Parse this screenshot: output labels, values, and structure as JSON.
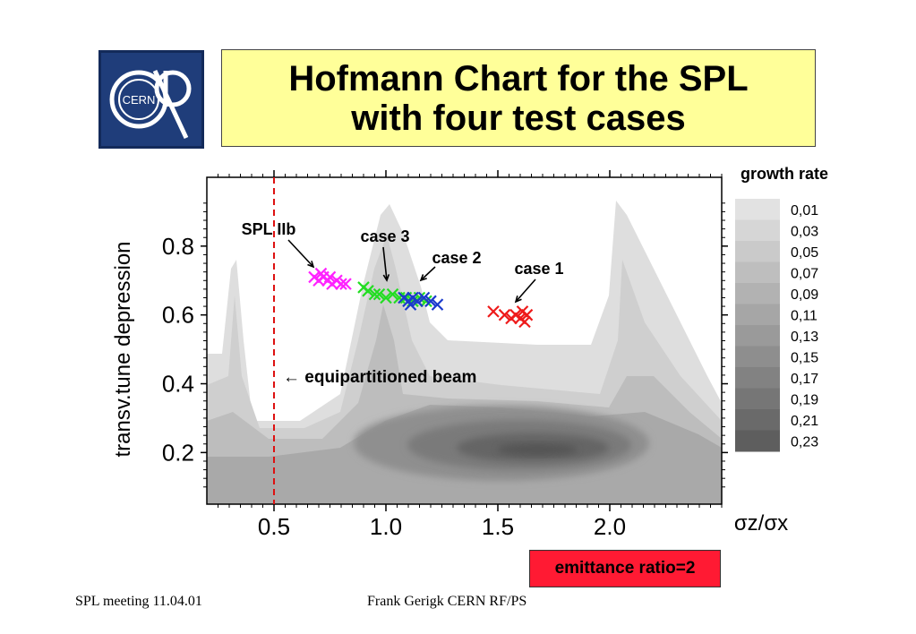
{
  "title": {
    "line1": "Hofmann Chart for the SPL",
    "line2": "with four test cases"
  },
  "logo": {
    "text": "CERN",
    "icon": "cern-logo"
  },
  "footer": {
    "left": "SPL meeting 11.04.01",
    "center": "Frank Gerigk CERN RF/PS"
  },
  "badge": {
    "text": "emittance ratio=2",
    "color": "#ff1a33"
  },
  "chart_data": {
    "type": "scatter",
    "title": "",
    "xlabel": "σz/σx",
    "ylabel": "transv.tune depression",
    "xlim": [
      0.2,
      2.5
    ],
    "ylim": [
      0.05,
      1.0
    ],
    "x_ticks": [
      "0.5",
      "1.0",
      "1.5",
      "2.0"
    ],
    "x_tick_values": [
      0.5,
      1.0,
      1.5,
      2.0
    ],
    "y_ticks": [
      "0.2",
      "0.4",
      "0.6",
      "0.8"
    ],
    "y_tick_values": [
      0.2,
      0.4,
      0.6,
      0.8
    ],
    "grid": false,
    "background": "contour plot of growth rate",
    "colorbar": {
      "title": "growth rate",
      "labels": [
        "0,01",
        "0,03",
        "0,05",
        "0,07",
        "0,09",
        "0,11",
        "0,13",
        "0,15",
        "0,17",
        "0,19",
        "0,21",
        "0,23"
      ],
      "colors": [
        "#e2e2e2",
        "#d6d6d6",
        "#cacaca",
        "#bebebe",
        "#b2b2b2",
        "#a6a6a6",
        "#9a9a9a",
        "#8e8e8e",
        "#828282",
        "#767676",
        "#6a6a6a",
        "#5e5e5e"
      ]
    },
    "series": [
      {
        "name": "SPL IIb",
        "color": "#ff22ff",
        "points": [
          [
            0.68,
            0.71
          ],
          [
            0.7,
            0.7
          ],
          [
            0.72,
            0.71
          ],
          [
            0.74,
            0.7
          ],
          [
            0.76,
            0.69
          ],
          [
            0.78,
            0.7
          ],
          [
            0.8,
            0.69
          ],
          [
            0.82,
            0.69
          ],
          [
            0.71,
            0.72
          ],
          [
            0.75,
            0.71
          ]
        ]
      },
      {
        "name": "case 3",
        "color": "#22dd22",
        "points": [
          [
            0.9,
            0.68
          ],
          [
            0.92,
            0.67
          ],
          [
            0.95,
            0.66
          ],
          [
            0.97,
            0.66
          ],
          [
            1.0,
            0.65
          ],
          [
            1.03,
            0.66
          ],
          [
            1.06,
            0.65
          ],
          [
            1.09,
            0.65
          ],
          [
            1.12,
            0.64
          ],
          [
            1.15,
            0.65
          ],
          [
            1.18,
            0.64
          ]
        ]
      },
      {
        "name": "case 2",
        "color": "#1a3acc",
        "points": [
          [
            1.08,
            0.65
          ],
          [
            1.1,
            0.64
          ],
          [
            1.11,
            0.63
          ],
          [
            1.12,
            0.65
          ],
          [
            1.14,
            0.64
          ],
          [
            1.17,
            0.65
          ],
          [
            1.2,
            0.64
          ],
          [
            1.23,
            0.63
          ]
        ]
      },
      {
        "name": "case 1",
        "color": "#ee1a1a",
        "points": [
          [
            1.48,
            0.61
          ],
          [
            1.53,
            0.6
          ],
          [
            1.56,
            0.59
          ],
          [
            1.58,
            0.6
          ],
          [
            1.6,
            0.59
          ],
          [
            1.61,
            0.61
          ],
          [
            1.62,
            0.58
          ],
          [
            1.63,
            0.6
          ]
        ]
      }
    ],
    "marker_labels": [
      "SPL IIb",
      "case 3",
      "case 2",
      "case 1"
    ],
    "reference_line": {
      "x": 0.5,
      "color": "#dd1111",
      "style": "dashed"
    },
    "annotation": "← equipartitioned beam"
  }
}
